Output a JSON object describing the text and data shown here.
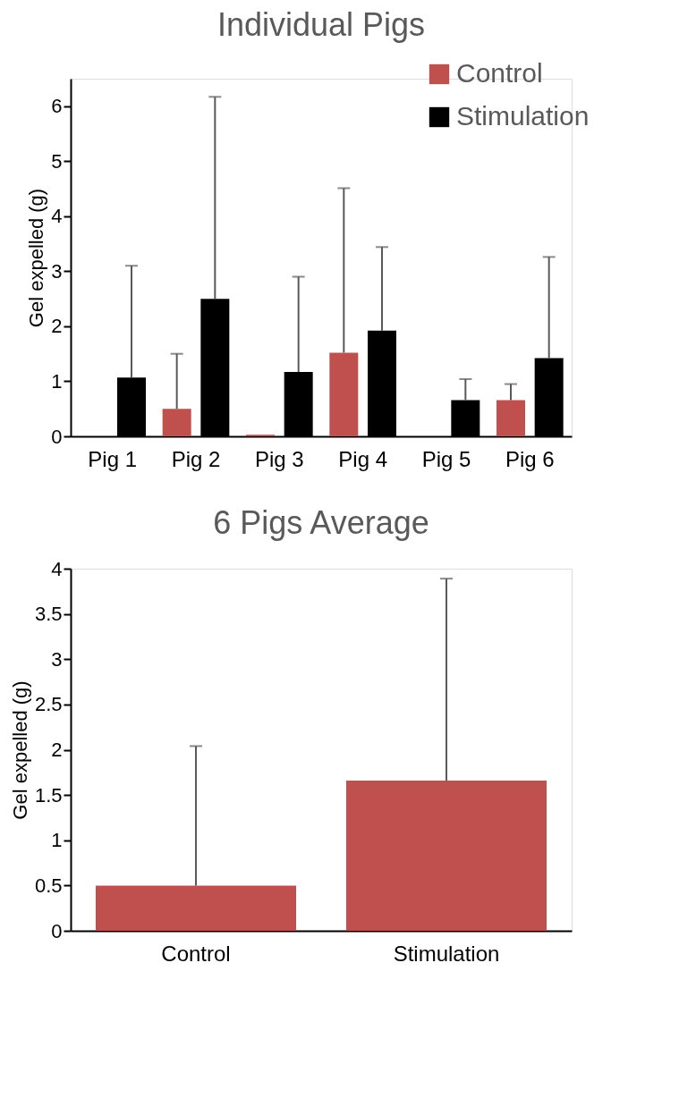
{
  "chart_data": [
    {
      "type": "bar",
      "title": "Individual Pigs",
      "ylabel": "Gel expelled (g)",
      "categories": [
        "Pig 1",
        "Pig 2",
        "Pig 3",
        "Pig 4",
        "Pig 5",
        "Pig 6"
      ],
      "ylim": [
        0,
        6.5
      ],
      "yticks": [
        0,
        1,
        2,
        3,
        4,
        5,
        6
      ],
      "grid": false,
      "legend": "top right",
      "series": [
        {
          "name": "Control",
          "color": "#c0504d",
          "values": [
            0,
            0.5,
            0.03,
            1.52,
            0,
            0.66
          ],
          "errors": [
            null,
            [
              0.5,
              1.5
            ],
            null,
            [
              1.52,
              4.51
            ],
            null,
            [
              0.66,
              0.95
            ]
          ]
        },
        {
          "name": "Stimulation",
          "color": "#000000",
          "values": [
            1.07,
            2.5,
            1.17,
            1.92,
            0.66,
            1.42
          ],
          "errors": [
            [
              1.07,
              3.1
            ],
            [
              2.5,
              6.17
            ],
            [
              1.17,
              2.9
            ],
            [
              1.92,
              3.44
            ],
            [
              0.66,
              1.04
            ],
            [
              1.42,
              3.26
            ]
          ]
        }
      ]
    },
    {
      "type": "bar",
      "title": "6 Pigs Average",
      "ylabel": "Gel expelled (g)",
      "categories": [
        "Control",
        "Stimulation"
      ],
      "ylim": [
        0,
        4
      ],
      "yticks": [
        0,
        0.5,
        1,
        1.5,
        2,
        2.5,
        3,
        3.5,
        4
      ],
      "grid": false,
      "legend": false,
      "series": [
        {
          "color": "#c0504d",
          "values": [
            0.5,
            1.66
          ],
          "errors": [
            [
              0.5,
              2.04
            ],
            [
              1.66,
              3.89
            ]
          ]
        }
      ]
    }
  ]
}
